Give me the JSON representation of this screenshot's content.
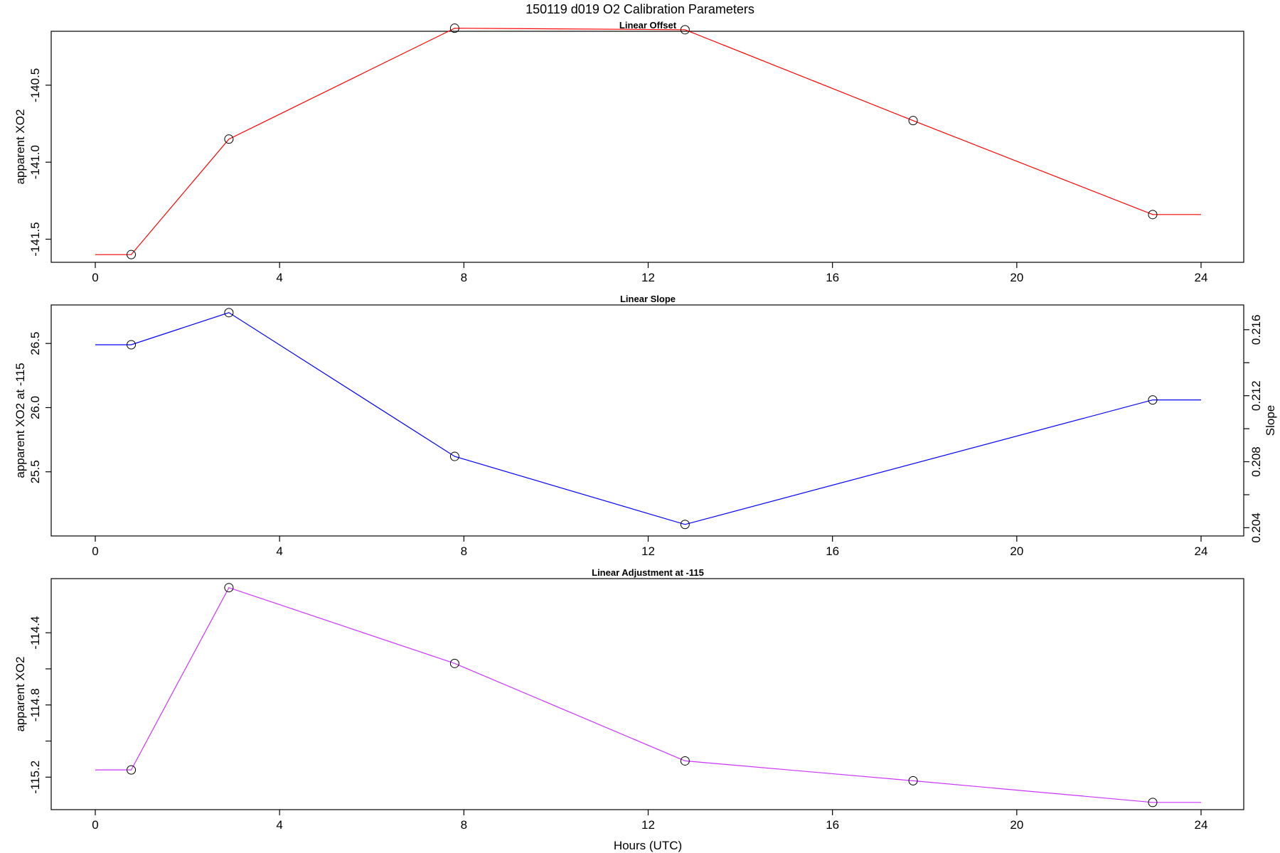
{
  "title": "150119   d019   O2 Calibration Parameters",
  "chart_data": [
    {
      "type": "line",
      "title": "Linear Offset",
      "xlabel": "",
      "ylabel": "apparent XO2",
      "xlim": [
        0,
        24
      ],
      "ylim": [
        -141.65,
        -140.15
      ],
      "x_ticks": [
        0,
        4,
        8,
        12,
        16,
        20,
        24
      ],
      "y_ticks": [
        -141.5,
        -141.0,
        -140.5
      ],
      "y_tick_labels": [
        "-141.5",
        "-141.0",
        "-140.5"
      ],
      "color": "#ff0000",
      "series": [
        {
          "x": [
            0,
            0.78,
            2.9,
            7.8,
            12.8,
            17.75,
            22.95,
            24
          ],
          "y": [
            -141.6,
            -141.6,
            -140.85,
            -140.13,
            -140.14,
            -140.73,
            -141.34,
            -141.34
          ],
          "markers": [
            false,
            true,
            true,
            true,
            true,
            true,
            true,
            false
          ]
        }
      ]
    },
    {
      "type": "line",
      "title": "Linear Slope",
      "xlabel": "",
      "ylabel": "apparent XO2 at -115",
      "y2label": "Slope",
      "xlim": [
        0,
        24
      ],
      "ylim": [
        25.0,
        26.8
      ],
      "x_ticks": [
        0,
        4,
        8,
        12,
        16,
        20,
        24
      ],
      "y_ticks": [
        25.5,
        26.0,
        26.5
      ],
      "y_tick_labels": [
        "25.5",
        "26.0",
        "26.5"
      ],
      "y2lim": [
        0.2035,
        0.2175
      ],
      "y2_ticks": [
        0.204,
        0.206,
        0.208,
        0.21,
        0.212,
        0.214,
        0.216
      ],
      "y2_tick_labels": [
        "0.204",
        "",
        "0.208",
        "",
        "0.212",
        "",
        "0.216"
      ],
      "color": "#0000ff",
      "series": [
        {
          "x": [
            0,
            0.78,
            2.9,
            7.8,
            12.8,
            22.95,
            24
          ],
          "y": [
            26.49,
            26.49,
            26.74,
            25.62,
            25.09,
            26.06,
            26.06
          ],
          "markers": [
            false,
            true,
            true,
            true,
            true,
            true,
            false
          ]
        }
      ]
    },
    {
      "type": "line",
      "title": "Linear Adjustment at -115",
      "xlabel": "Hours (UTC)",
      "ylabel": "apparent XO2",
      "xlim": [
        0,
        24
      ],
      "ylim": [
        -115.38,
        -114.1
      ],
      "x_ticks": [
        0,
        4,
        8,
        12,
        16,
        20,
        24
      ],
      "y_ticks": [
        -115.2,
        -115.0,
        -114.8,
        -114.6,
        -114.4
      ],
      "y_tick_labels": [
        "-115.2",
        "",
        "-114.8",
        "",
        "-114.4"
      ],
      "color": "#cc33ff",
      "series": [
        {
          "x": [
            0,
            0.78,
            2.9,
            7.8,
            12.8,
            17.75,
            22.95,
            24
          ],
          "y": [
            -115.16,
            -115.16,
            -114.15,
            -114.57,
            -115.11,
            -115.22,
            -115.34,
            -115.34
          ],
          "markers": [
            false,
            true,
            true,
            true,
            true,
            true,
            true,
            false
          ]
        }
      ]
    }
  ]
}
